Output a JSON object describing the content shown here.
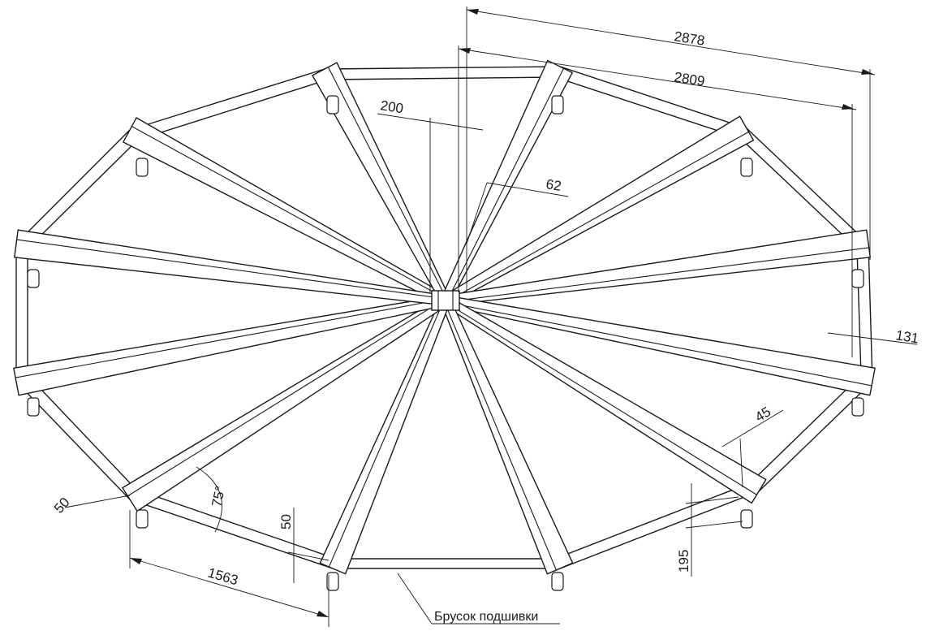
{
  "drawing": {
    "dimensions": {
      "overall_outer": "2878",
      "overall_inner": "2809",
      "hub_width": "200",
      "beam_width": "62",
      "post_offset": "131",
      "small_45": "45",
      "height_195": "195",
      "rim_edge_50_left": "50",
      "rim_edge_50_bottom": "50",
      "angle": "75°",
      "segment_length": "1563"
    },
    "callout": {
      "label": "Брусок подшивки"
    }
  }
}
